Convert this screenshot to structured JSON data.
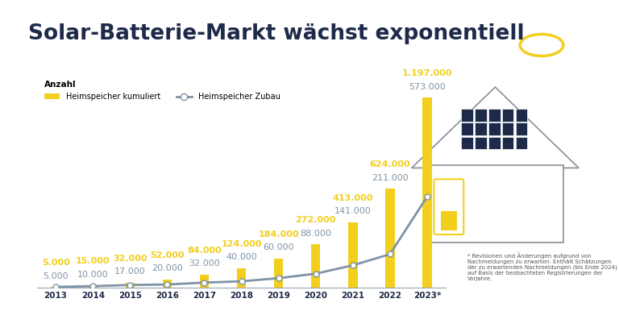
{
  "chart_data": {
    "type": "bar",
    "title": "Solar-Batterie-Markt wächst exponentiell",
    "y_label": "Anzahl",
    "note": "* Revisionen und Änderungen aufgrund von Nachmeldungen zu erwarten. Enthält Schätzungen der zu erwartenden Nachmeldungen (bis Ende 2024) auf Basis der beobachteten Registrierungen der Vorjahre.",
    "categories": [
      "2013",
      "2014",
      "2015",
      "2016",
      "2017",
      "2018",
      "2019",
      "2020",
      "2021",
      "2022",
      "2023*"
    ],
    "series": [
      {
        "name": "Heimspeicher kumuliert",
        "type": "bar",
        "color": "#f2cf1d",
        "values": [
          5000,
          15000,
          32000,
          52000,
          84000,
          124000,
          184000,
          272000,
          413000,
          624000,
          1197000
        ],
        "value_labels": [
          "5.000",
          "15.000",
          "32.000",
          "52.000",
          "84.000",
          "124.000",
          "184.000",
          "272.000",
          "413.000",
          "624.000",
          "1.197.000"
        ]
      },
      {
        "name": "Heimspeicher Zubau",
        "type": "line",
        "color": "#7f93a6",
        "marker": "o",
        "values": [
          5000,
          10000,
          17000,
          20000,
          32000,
          40000,
          60000,
          88000,
          141000,
          211000,
          573000
        ],
        "value_labels": [
          "5.000",
          "10.000",
          "17.000",
          "20.000",
          "32.000",
          "40.000",
          "60.000",
          "88.000",
          "141.000",
          "211.000",
          "573.000"
        ]
      }
    ],
    "ylim": [
      0,
      1450000
    ],
    "data_labels": true,
    "tick_labels": "x",
    "legend": "upper left",
    "grid": false
  }
}
